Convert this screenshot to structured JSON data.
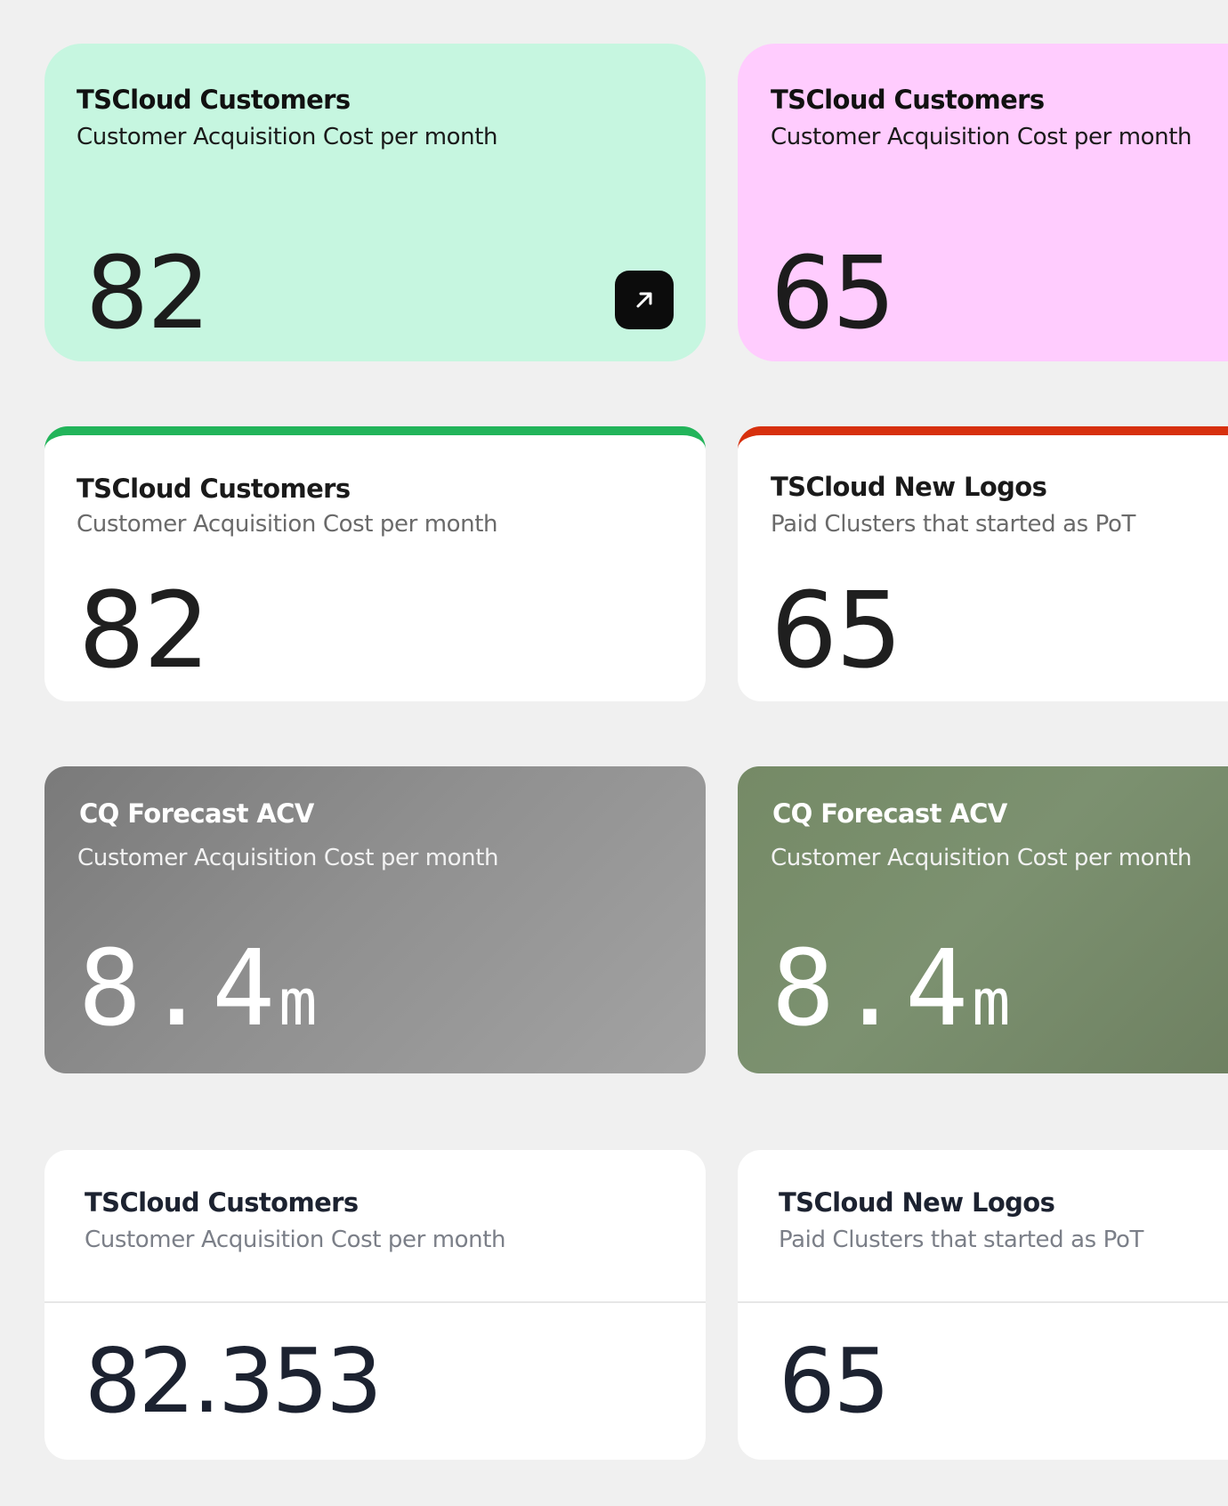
{
  "colors": {
    "background": "#f0f0f0",
    "mint": "#c6f6e0",
    "pink": "#ffccfe",
    "green_accent": "#22b45a",
    "red_accent": "#d7300e",
    "arrow_button": "#0c0c0c"
  },
  "cards": [
    {
      "title": "TSCloud Customers",
      "subtitle": "Customer Acquisition Cost per month",
      "value": "82",
      "background": "#c6f6e0",
      "icon": "arrow-up-right-icon"
    },
    {
      "title": "TSCloud Customers",
      "subtitle": "Customer Acquisition Cost per month",
      "value": "65",
      "background": "#ffccfe"
    },
    {
      "title": "TSCloud Customers",
      "subtitle": "Customer Acquisition Cost per month",
      "value": "82",
      "accent": "#22b45a"
    },
    {
      "title": "TSCloud New Logos",
      "subtitle": "Paid Clusters that started as PoT",
      "value": "65",
      "accent": "#d7300e"
    },
    {
      "title": "CQ Forecast ACV",
      "subtitle": "Customer Acquisition Cost per month",
      "value": "8.4",
      "unit": "m"
    },
    {
      "title": "CQ Forecast ACV",
      "subtitle": "Customer Acquisition Cost per month",
      "value": "8.4",
      "unit": "m"
    },
    {
      "title": "TSCloud Customers",
      "subtitle": "Customer Acquisition Cost per month",
      "value": "82.353"
    },
    {
      "title": "TSCloud New Logos",
      "subtitle": "Paid Clusters that started as PoT",
      "value": "65"
    }
  ]
}
